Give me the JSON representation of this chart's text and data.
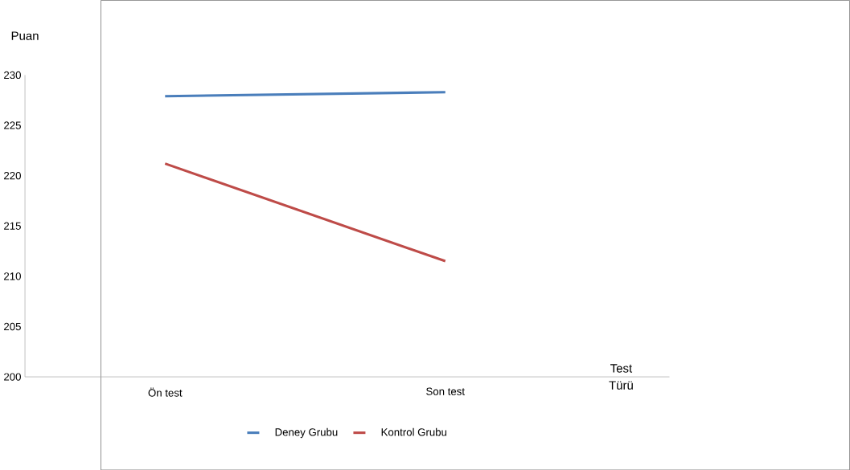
{
  "chart_data": {
    "type": "line",
    "xlabel": "Test Türü",
    "ylabel": "Puan",
    "categories": [
      "Ön test",
      "Son test"
    ],
    "series": [
      {
        "name": "Deney Grubu",
        "color": "#4a7ebb",
        "values": [
          227.9,
          228.3
        ]
      },
      {
        "name": "Kontrol Grubu",
        "color": "#be4b48",
        "values": [
          221.2,
          211.5
        ]
      }
    ],
    "ylim": [
      200,
      230
    ],
    "yticks": [
      200,
      205,
      210,
      215,
      220,
      225,
      230
    ],
    "grid": false,
    "legend": "bottom",
    "marker": "none",
    "line_style": "solid"
  }
}
